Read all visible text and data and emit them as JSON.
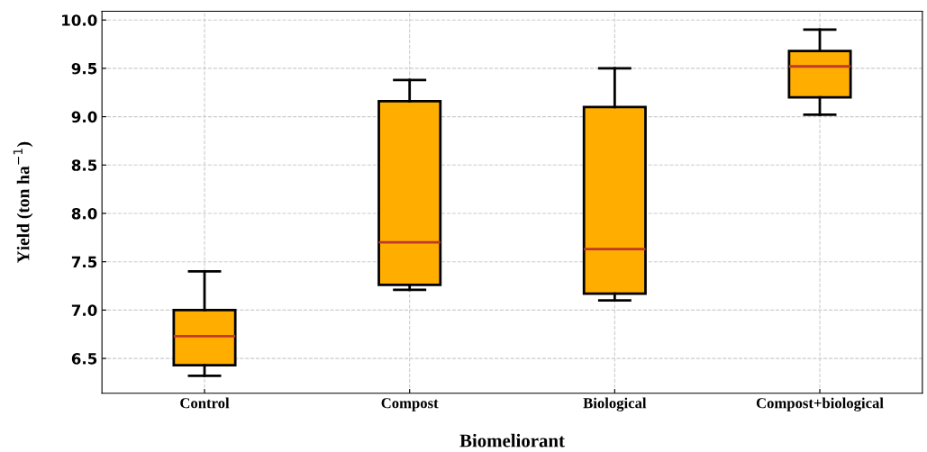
{
  "chart_data": {
    "type": "box",
    "xlabel": "Biomeliorant",
    "ylabel": "Yield (ton ha$^{−1}$)",
    "categories": [
      "Control",
      "Compost",
      "Biological",
      "Compost+biological"
    ],
    "boxes": [
      {
        "low": 6.32,
        "q1": 6.43,
        "median": 6.73,
        "q3": 7.0,
        "high": 7.4
      },
      {
        "low": 7.21,
        "q1": 7.26,
        "median": 7.7,
        "q3": 9.16,
        "high": 9.38
      },
      {
        "low": 7.1,
        "q1": 7.17,
        "median": 7.63,
        "q3": 9.1,
        "high": 9.5
      },
      {
        "low": 9.02,
        "q1": 9.2,
        "median": 9.52,
        "q3": 9.68,
        "high": 9.9
      }
    ],
    "color": "#ffae00",
    "ylim": [
      6.14,
      10.09
    ],
    "yticks": [
      6.5,
      {
        "value": 7,
        "label": "7.0"
      },
      7.5,
      {
        "value": 8,
        "label": "8.0"
      },
      8.5,
      {
        "value": 9,
        "label": "9.0"
      },
      9.5,
      {
        "value": 10,
        "label": "10.0"
      }
    ],
    "grid": true
  }
}
